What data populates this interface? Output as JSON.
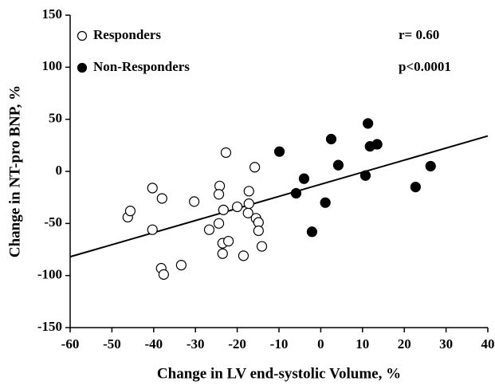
{
  "chart_data": {
    "type": "scatter",
    "xlabel": "Change in LV end-systolic Volume, %",
    "ylabel": "Change in NT-pro BNP, %",
    "xlim": [
      -60,
      40
    ],
    "xticks": [
      -60,
      -50,
      -40,
      -30,
      -20,
      -10,
      0,
      10,
      20,
      30,
      40
    ],
    "ylim": [
      -150,
      150
    ],
    "yticks": [
      -150,
      -100,
      -50,
      0,
      50,
      100,
      150
    ],
    "annotations": [
      "r= 0.60",
      "p<0.0001"
    ],
    "trend_line": {
      "x": [
        -60,
        40
      ],
      "y": [
        -82,
        34
      ]
    },
    "series": [
      {
        "name": "Responders",
        "color": "#ffffff",
        "x": [
          -46.2,
          -45.6,
          -40.3,
          -40.3,
          -38,
          -38.2,
          -37.6,
          -33.4,
          -30.3,
          -26.7,
          -24.4,
          -24.2,
          -24.4,
          -23.3,
          -23.5,
          -23.5,
          -22.7,
          -22.1,
          -20,
          -18.5,
          -17.4,
          -17.2,
          -17.2,
          -15.8,
          -15.5,
          -14.9,
          -14.9,
          -14.1
        ],
        "values": [
          -44,
          -38,
          -16,
          -56,
          -26,
          -93,
          -99,
          -90,
          -29,
          -56,
          -50,
          -14,
          -22,
          -37,
          -69,
          -79,
          18,
          -67,
          -34,
          -81,
          -40,
          -19,
          -31,
          4,
          -45,
          -49,
          -57,
          -72
        ]
      },
      {
        "name": "Non-Responders",
        "color": "#000000",
        "x": [
          -9.9,
          -5.9,
          -4,
          -2.1,
          1.1,
          2.5,
          4.2,
          10.7,
          11.3,
          11.8,
          13.5,
          22.7,
          26.3
        ],
        "values": [
          19,
          -21,
          -7,
          -58,
          -30,
          31,
          6,
          -4,
          46,
          24,
          26,
          -15,
          5
        ]
      }
    ]
  }
}
